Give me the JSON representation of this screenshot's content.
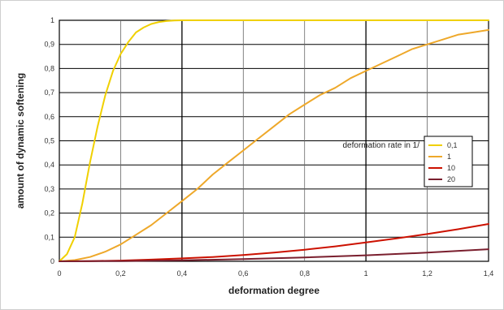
{
  "chart_data": {
    "type": "line",
    "title": "",
    "xlabel": "deformation degree",
    "ylabel": "amount of dynamic softening",
    "xlim": [
      0,
      1.4
    ],
    "ylim": [
      0,
      1
    ],
    "x_ticks": [
      {
        "value": 0,
        "label": "0"
      },
      {
        "value": 0.2,
        "label": "0,2"
      },
      {
        "value": 0.4,
        "label": "0,4"
      },
      {
        "value": 0.6,
        "label": "0,6"
      },
      {
        "value": 0.8,
        "label": "0,8"
      },
      {
        "value": 1.0,
        "label": "1"
      },
      {
        "value": 1.2,
        "label": "1,2"
      },
      {
        "value": 1.4,
        "label": "1,4"
      }
    ],
    "y_ticks": [
      {
        "value": 0,
        "label": "0"
      },
      {
        "value": 0.1,
        "label": "0,1"
      },
      {
        "value": 0.2,
        "label": "0,2"
      },
      {
        "value": 0.3,
        "label": "0,3"
      },
      {
        "value": 0.4,
        "label": "0,4"
      },
      {
        "value": 0.5,
        "label": "0,5"
      },
      {
        "value": 0.6,
        "label": "0,6"
      },
      {
        "value": 0.7,
        "label": "0,7"
      },
      {
        "value": 0.8,
        "label": "0,8"
      },
      {
        "value": 0.9,
        "label": "0,9"
      },
      {
        "value": 1,
        "label": "1"
      }
    ],
    "grid": true,
    "legend": {
      "title": "deformation rate in 1/",
      "placement": "center-right"
    },
    "series": [
      {
        "name": "0,1",
        "color": "#f0d000",
        "x": [
          0,
          0.025,
          0.05,
          0.075,
          0.1,
          0.125,
          0.15,
          0.175,
          0.2,
          0.225,
          0.25,
          0.275,
          0.3,
          0.325,
          0.35,
          0.375,
          0.4,
          0.5,
          0.6,
          0.8,
          1.0,
          1.2,
          1.4
        ],
        "y": [
          0,
          0.03,
          0.1,
          0.24,
          0.41,
          0.56,
          0.69,
          0.79,
          0.86,
          0.91,
          0.95,
          0.97,
          0.985,
          0.993,
          0.997,
          0.999,
          1,
          1,
          1,
          1,
          1,
          1,
          1
        ]
      },
      {
        "name": "1",
        "color": "#eea82a",
        "x": [
          0,
          0.05,
          0.1,
          0.15,
          0.2,
          0.25,
          0.3,
          0.35,
          0.4,
          0.45,
          0.5,
          0.55,
          0.6,
          0.65,
          0.7,
          0.75,
          0.8,
          0.85,
          0.9,
          0.95,
          1.0,
          1.05,
          1.1,
          1.15,
          1.2,
          1.25,
          1.3,
          1.35,
          1.4
        ],
        "y": [
          0,
          0.005,
          0.018,
          0.04,
          0.07,
          0.11,
          0.15,
          0.2,
          0.25,
          0.3,
          0.36,
          0.41,
          0.46,
          0.51,
          0.56,
          0.61,
          0.65,
          0.69,
          0.72,
          0.76,
          0.79,
          0.82,
          0.85,
          0.88,
          0.9,
          0.92,
          0.94,
          0.95,
          0.96
        ]
      },
      {
        "name": "10",
        "color": "#cc1100",
        "x": [
          0,
          0.1,
          0.2,
          0.3,
          0.4,
          0.5,
          0.6,
          0.7,
          0.8,
          0.9,
          1.0,
          1.1,
          1.2,
          1.3,
          1.4
        ],
        "y": [
          0,
          0.001,
          0.003,
          0.007,
          0.012,
          0.018,
          0.026,
          0.036,
          0.048,
          0.062,
          0.078,
          0.095,
          0.113,
          0.133,
          0.155
        ]
      },
      {
        "name": "20",
        "color": "#7a1f2e",
        "x": [
          0,
          0.2,
          0.4,
          0.6,
          0.8,
          1.0,
          1.2,
          1.4
        ],
        "y": [
          0,
          0.001,
          0.004,
          0.009,
          0.016,
          0.025,
          0.036,
          0.05
        ]
      }
    ]
  }
}
